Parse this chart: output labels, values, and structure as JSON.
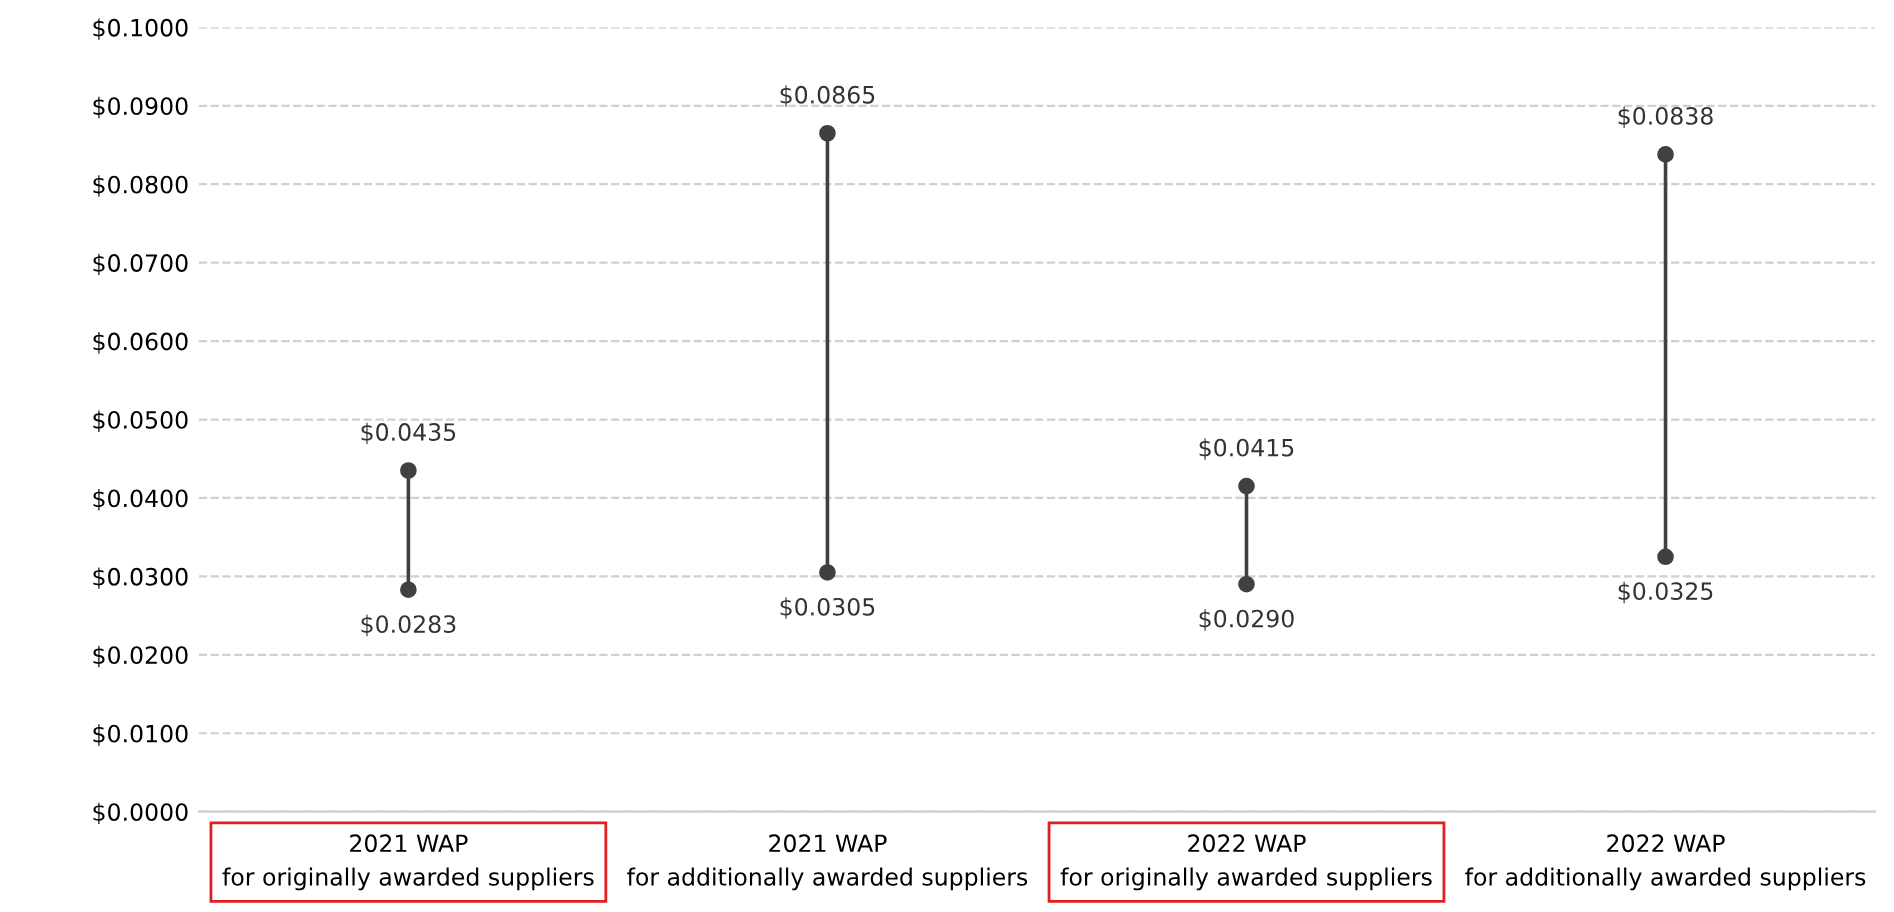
{
  "chart_data": {
    "type": "line",
    "categories": [
      "2021 WAP\nfor originally awarded suppliers",
      "2021 WAP\nfor additionally awarded suppliers",
      "2022 WAP\nfor originally awarded suppliers",
      "2022 WAP\nfor additionally awarded suppliers"
    ],
    "series": [
      {
        "color": "#404040",
        "x": [
          "2021 WAP\nfor originally awarded suppliers",
          "2021 WAP\nfor originally awarded suppliers"
        ],
        "values": [
          0.0283,
          0.0435
        ],
        "value_labels": [
          "$0.0283",
          "$0.0435"
        ]
      },
      {
        "color": "#404040",
        "x": [
          "2021 WAP\nfor additionally awarded suppliers",
          "2021 WAP\nfor additionally awarded suppliers"
        ],
        "values": [
          0.0305,
          0.0865
        ],
        "value_labels": [
          "$0.0305",
          "$0.0865"
        ]
      },
      {
        "color": "#404040",
        "x": [
          "2022 WAP\nfor originally awarded suppliers",
          "2022 WAP\nfor originally awarded suppliers"
        ],
        "values": [
          0.029,
          0.0415
        ],
        "value_labels": [
          "$0.0290",
          "$0.0415"
        ]
      },
      {
        "color": "#404040",
        "x": [
          "2022 WAP\nfor additionally awarded suppliers",
          "2022 WAP\nfor additionally awarded suppliers"
        ],
        "values": [
          0.0325,
          0.0838
        ],
        "value_labels": [
          "$0.0325",
          "$0.0838"
        ]
      }
    ],
    "ylim": [
      0,
      0.1
    ],
    "yticks": [
      {
        "value": 0,
        "label": "$0.0000"
      },
      {
        "value": 0.01,
        "label": "$0.0100"
      },
      {
        "value": 0.02,
        "label": "$0.0200"
      },
      {
        "value": 0.03,
        "label": "$0.0300"
      },
      {
        "value": 0.04,
        "label": "$0.0400"
      },
      {
        "value": 0.05,
        "label": "$0.0500"
      },
      {
        "value": 0.06,
        "label": "$0.0600"
      },
      {
        "value": 0.07,
        "label": "$0.0700"
      },
      {
        "value": 0.08,
        "label": "$0.0800"
      },
      {
        "value": 0.09,
        "label": "$0.0900"
      },
      {
        "value": 0.1,
        "label": "$0.1000"
      }
    ],
    "grid": "y",
    "marker": "circle"
  }
}
